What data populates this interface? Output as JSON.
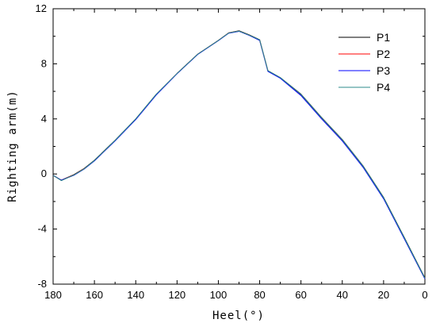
{
  "chart_data": {
    "type": "line",
    "xlabel": "Heel(°)",
    "ylabel": "Righting arm(m)",
    "xlim": [
      180,
      0
    ],
    "ylim": [
      -8,
      12
    ],
    "x_reversed": true,
    "xticks": [
      180,
      160,
      140,
      120,
      100,
      80,
      60,
      40,
      20,
      0
    ],
    "yticks": [
      -8,
      -4,
      0,
      4,
      8,
      12
    ],
    "grid": false,
    "legend_position": "top-right",
    "series": [
      {
        "name": "P1",
        "color": "#000000",
        "points": [
          [
            180,
            -0.1
          ],
          [
            176,
            -0.45
          ],
          [
            170,
            -0.05
          ],
          [
            165,
            0.4
          ],
          [
            160,
            1.0
          ],
          [
            150,
            2.45
          ],
          [
            140,
            4.0
          ],
          [
            130,
            5.8
          ],
          [
            120,
            7.3
          ],
          [
            110,
            8.7
          ],
          [
            100,
            9.7
          ],
          [
            95,
            10.25
          ],
          [
            90,
            10.4
          ],
          [
            85,
            10.1
          ],
          [
            80,
            9.75
          ],
          [
            76,
            7.5
          ],
          [
            70,
            7.0
          ],
          [
            60,
            5.8
          ],
          [
            50,
            4.1
          ],
          [
            40,
            2.5
          ],
          [
            30,
            0.6
          ],
          [
            20,
            -1.7
          ],
          [
            10,
            -4.6
          ],
          [
            0,
            -7.55
          ]
        ]
      },
      {
        "name": "P2",
        "color": "#ff0000",
        "points": [
          [
            180,
            -0.1
          ],
          [
            176,
            -0.45
          ],
          [
            170,
            -0.07
          ],
          [
            165,
            0.38
          ],
          [
            160,
            0.97
          ],
          [
            150,
            2.42
          ],
          [
            140,
            3.98
          ],
          [
            130,
            5.78
          ],
          [
            120,
            7.3
          ],
          [
            110,
            8.7
          ],
          [
            100,
            9.7
          ],
          [
            95,
            10.25
          ],
          [
            90,
            10.38
          ],
          [
            85,
            10.08
          ],
          [
            80,
            9.72
          ],
          [
            76,
            7.48
          ],
          [
            70,
            6.98
          ],
          [
            60,
            5.75
          ],
          [
            50,
            4.05
          ],
          [
            40,
            2.45
          ],
          [
            30,
            0.55
          ],
          [
            20,
            -1.75
          ],
          [
            10,
            -4.65
          ],
          [
            0,
            -7.6
          ]
        ]
      },
      {
        "name": "P3",
        "color": "#0000ff",
        "points": [
          [
            180,
            -0.1
          ],
          [
            176,
            -0.45
          ],
          [
            170,
            -0.1
          ],
          [
            165,
            0.35
          ],
          [
            160,
            0.95
          ],
          [
            150,
            2.4
          ],
          [
            140,
            3.95
          ],
          [
            130,
            5.75
          ],
          [
            120,
            7.28
          ],
          [
            110,
            8.68
          ],
          [
            100,
            9.68
          ],
          [
            95,
            10.22
          ],
          [
            90,
            10.36
          ],
          [
            85,
            10.06
          ],
          [
            80,
            9.7
          ],
          [
            76,
            7.45
          ],
          [
            70,
            6.95
          ],
          [
            60,
            5.7
          ],
          [
            50,
            4.0
          ],
          [
            40,
            2.4
          ],
          [
            30,
            0.5
          ],
          [
            20,
            -1.8
          ],
          [
            10,
            -4.7
          ],
          [
            0,
            -7.62
          ]
        ]
      },
      {
        "name": "P4",
        "color": "#2e8b8b",
        "points": [
          [
            180,
            -0.1
          ],
          [
            176,
            -0.48
          ],
          [
            170,
            -0.08
          ],
          [
            165,
            0.37
          ],
          [
            160,
            0.98
          ],
          [
            150,
            2.44
          ],
          [
            140,
            4.0
          ],
          [
            130,
            5.8
          ],
          [
            120,
            7.3
          ],
          [
            110,
            8.7
          ],
          [
            100,
            9.7
          ],
          [
            95,
            10.24
          ],
          [
            90,
            10.38
          ],
          [
            85,
            10.08
          ],
          [
            80,
            9.74
          ],
          [
            76,
            7.5
          ],
          [
            70,
            7.0
          ],
          [
            60,
            5.78
          ],
          [
            50,
            4.08
          ],
          [
            40,
            2.48
          ],
          [
            30,
            0.58
          ],
          [
            20,
            -1.72
          ],
          [
            10,
            -4.62
          ],
          [
            0,
            -7.57
          ]
        ]
      }
    ]
  }
}
